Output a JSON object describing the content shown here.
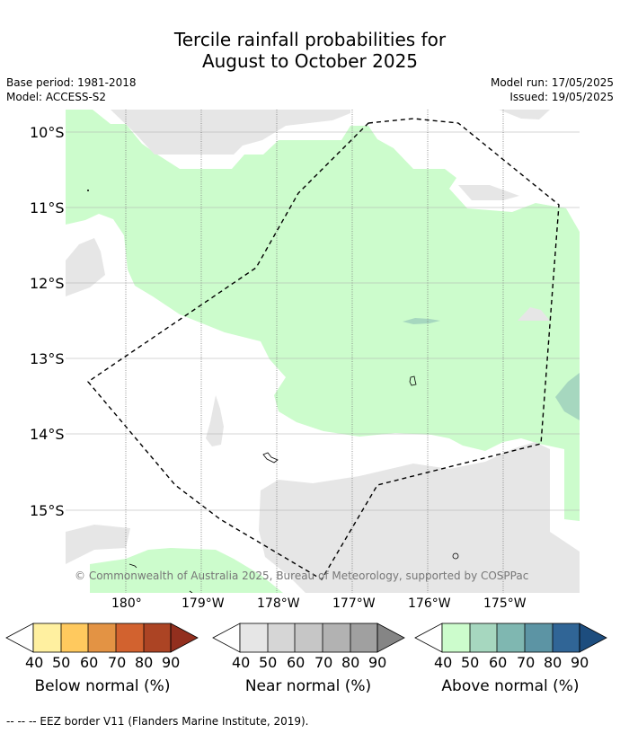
{
  "title_line1": "Tercile rainfall probabilities for",
  "title_line2": "August to October 2025",
  "base_period": "Base period: 1981-2018",
  "model": "Model: ACCESS-S2",
  "model_run": "Model run: 17/05/2025",
  "issued": "Issued: 19/05/2025",
  "copyright": "© Commonwealth of Australia 2025, Bureau of Meteorology, supported by COSPPac",
  "lat_labels": [
    "10°S",
    "11°S",
    "12°S",
    "13°S",
    "14°S",
    "15°S"
  ],
  "lon_labels": [
    "180°",
    "179°W",
    "178°W",
    "177°W",
    "176°W",
    "175°W"
  ],
  "legends": [
    {
      "label": "Below normal (%)",
      "colors": [
        "#fff0a0",
        "#ffc95e",
        "#e39344",
        "#d2622f",
        "#ac4424",
        "#922f1e"
      ]
    },
    {
      "label": "Near normal (%)",
      "colors": [
        "#e6e6e6",
        "#d6d6d6",
        "#c6c6c6",
        "#b2b2b2",
        "#a0a0a0",
        "#858585"
      ]
    },
    {
      "label": "Above normal (%)",
      "colors": [
        "#ccfccc",
        "#a6d7bf",
        "#7fb7b1",
        "#5c94a4",
        "#306596",
        "#1d4d7e"
      ]
    }
  ],
  "legend_ticks": [
    "40",
    "50",
    "60",
    "70",
    "80",
    "90"
  ],
  "footnote": "--  --  -- EEZ border V11 (Flanders Marine Institute, 2019).",
  "colors": {
    "above_40": "#ccfccc",
    "above_50": "#a6d7bf",
    "near_40": "#e6e6e6",
    "gridline": "#aaaaaa"
  }
}
